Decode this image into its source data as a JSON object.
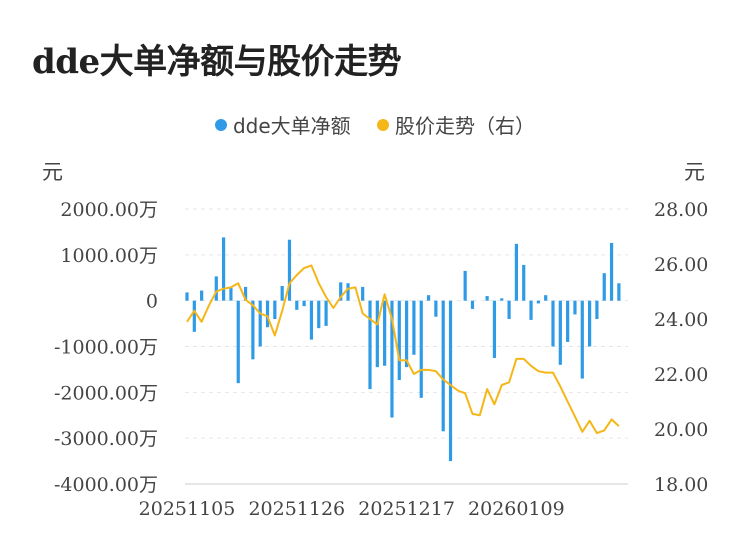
{
  "title": "dde大单净额与股价走势",
  "chart_data": {
    "type": "bar+line",
    "title": "dde大单净额与股价走势",
    "legend": [
      {
        "name": "dde大单净额",
        "color": "#2f9be6"
      },
      {
        "name": "股价走势（右）",
        "color": "#f5b617"
      }
    ],
    "left_unit": "元",
    "right_unit": "元",
    "left_axis": {
      "min": -4000,
      "max": 2000,
      "step": 1000,
      "tick_labels": [
        "-4000.00万",
        "-3000.00万",
        "-2000.00万",
        "-1000.00万",
        "0",
        "1000.00万",
        "2000.00万"
      ]
    },
    "right_axis": {
      "min": 18,
      "max": 28,
      "step": 2,
      "tick_labels": [
        "18.00",
        "20.00",
        "22.00",
        "24.00",
        "26.00",
        "28.00"
      ]
    },
    "x_tick_labels": [
      "20251105",
      "20251126",
      "20251217",
      "20260109"
    ],
    "x_tick_indices": [
      0,
      15,
      30,
      45
    ],
    "grid": "horizontal",
    "legend_position": "top-center",
    "series": [
      {
        "name": "dde大单净额",
        "type": "bar",
        "axis": "left",
        "color": "#2f9be6",
        "values": [
          180,
          -680,
          220,
          0,
          530,
          1380,
          280,
          -1800,
          300,
          -1280,
          -1000,
          -580,
          -400,
          320,
          1330,
          -200,
          -120,
          -850,
          -600,
          -550,
          0,
          400,
          380,
          0,
          300,
          -1930,
          -1450,
          -1420,
          -2550,
          -1730,
          -1450,
          -1180,
          -2120,
          120,
          -350,
          -2850,
          -3500,
          0,
          650,
          -180,
          0,
          100,
          -1250,
          50,
          -400,
          1240,
          780,
          -420,
          -60,
          120,
          -1000,
          -1400,
          -900,
          -300,
          -1700,
          -1000,
          -400,
          600,
          1260,
          380
        ]
      },
      {
        "name": "股价走势（右）",
        "type": "line",
        "axis": "right",
        "color": "#f5b617",
        "values": [
          23.9,
          24.3,
          23.9,
          24.5,
          25.0,
          25.1,
          25.15,
          25.3,
          24.7,
          24.5,
          24.2,
          24.1,
          23.4,
          24.3,
          25.3,
          25.6,
          25.85,
          25.95,
          25.3,
          24.8,
          24.4,
          24.8,
          25.1,
          25.15,
          24.2,
          24.0,
          23.8,
          24.9,
          24.0,
          22.5,
          22.5,
          22.0,
          22.15,
          22.15,
          22.1,
          21.8,
          21.6,
          21.4,
          21.3,
          20.55,
          20.5,
          21.45,
          20.9,
          21.6,
          21.7,
          22.55,
          22.55,
          22.3,
          22.1,
          22.05,
          22.05,
          21.55,
          21.0,
          20.45,
          19.9,
          20.3,
          19.85,
          19.95,
          20.35,
          20.1
        ]
      }
    ]
  }
}
